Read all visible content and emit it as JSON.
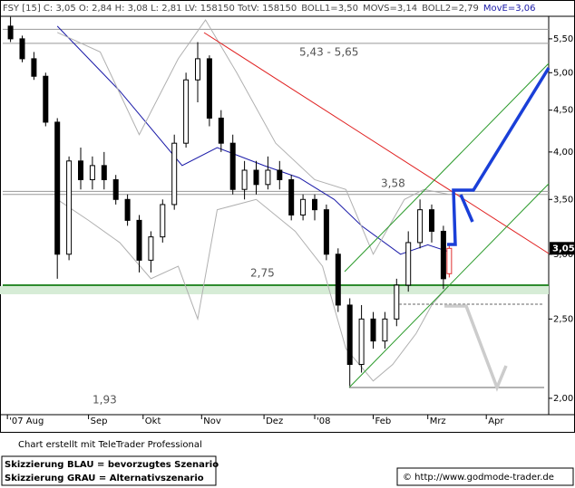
{
  "chart_data": {
    "type": "candlestick",
    "header": [
      "FSY [15] C: 3,05 O: 2,84 H: 3,08 L: 2,81 LV: 158150 TotV: 158150",
      "BOLL1=3,50",
      "MOVS=3,14",
      "BOLL2=2,79",
      "MovE=3,06"
    ],
    "log_scale": true,
    "ylim": [
      1.91,
      5.86
    ],
    "yticks": [
      {
        "value": 2.0,
        "label": "2,00"
      },
      {
        "value": 2.5,
        "label": "2,50"
      },
      {
        "value": 3.0,
        "label": "3,00"
      },
      {
        "value": 3.5,
        "label": "3,50"
      },
      {
        "value": 4.0,
        "label": "4,00"
      },
      {
        "value": 4.5,
        "label": "4,50"
      },
      {
        "value": 5.0,
        "label": "5,00"
      },
      {
        "value": 5.5,
        "label": "5,50"
      }
    ],
    "xlim": [
      0,
      140
    ],
    "xticks": [
      {
        "value": 1.2,
        "label": "'07 Aug"
      },
      {
        "value": 22,
        "label": "Sep"
      },
      {
        "value": 36,
        "label": "Okt"
      },
      {
        "value": 51,
        "label": "Nov"
      },
      {
        "value": 67,
        "label": "Dez"
      },
      {
        "value": 80,
        "label": "'08"
      },
      {
        "value": 95,
        "label": "Feb"
      },
      {
        "value": 109,
        "label": "Mrz"
      },
      {
        "value": 124,
        "label": "Apr"
      }
    ],
    "last_price": {
      "value": 3.05,
      "label": "3,05"
    },
    "candles": {
      "color": "#000000",
      "last_color": "#e03030",
      "x": [
        2,
        5,
        8,
        11,
        14,
        17,
        20,
        23,
        26,
        29,
        32,
        35,
        38,
        41,
        44,
        47,
        50,
        53,
        56,
        59,
        62,
        65,
        68,
        71,
        74,
        77,
        80,
        83,
        86,
        89,
        92,
        95,
        98,
        101,
        104,
        107,
        110,
        113,
        114.5
      ],
      "open": [
        5.7,
        5.5,
        5.2,
        4.95,
        4.35,
        3.0,
        3.9,
        3.7,
        3.85,
        3.7,
        3.5,
        3.3,
        2.95,
        3.15,
        3.45,
        4.1,
        4.9,
        5.2,
        4.4,
        4.1,
        3.6,
        3.8,
        3.65,
        3.8,
        3.7,
        3.35,
        3.5,
        3.4,
        3.0,
        2.6,
        2.2,
        2.5,
        2.35,
        2.5,
        2.75,
        3.1,
        3.4,
        3.2,
        2.84
      ],
      "high": [
        5.85,
        5.55,
        5.3,
        5.0,
        4.4,
        3.95,
        4.05,
        3.95,
        4.0,
        3.75,
        3.55,
        3.35,
        3.2,
        3.5,
        4.2,
        5.0,
        5.45,
        5.25,
        4.5,
        4.2,
        3.9,
        3.9,
        3.95,
        3.9,
        3.75,
        3.55,
        3.55,
        3.45,
        3.05,
        2.65,
        2.6,
        2.55,
        2.55,
        2.8,
        3.2,
        3.5,
        3.45,
        3.25,
        3.08
      ],
      "low": [
        5.45,
        5.15,
        4.9,
        4.3,
        2.8,
        2.95,
        3.6,
        3.6,
        3.6,
        3.45,
        3.25,
        2.85,
        2.85,
        3.1,
        3.4,
        4.05,
        4.6,
        4.3,
        4.0,
        3.55,
        3.5,
        3.55,
        3.6,
        3.6,
        3.3,
        3.3,
        3.3,
        2.95,
        2.55,
        2.07,
        2.15,
        2.3,
        2.3,
        2.45,
        2.7,
        3.05,
        3.1,
        2.72,
        2.81
      ],
      "close": [
        5.5,
        5.2,
        4.95,
        4.35,
        3.0,
        3.9,
        3.7,
        3.85,
        3.7,
        3.5,
        3.3,
        2.95,
        3.15,
        3.45,
        4.1,
        4.9,
        5.2,
        4.4,
        4.1,
        3.6,
        3.8,
        3.65,
        3.8,
        3.7,
        3.35,
        3.5,
        3.4,
        3.0,
        2.6,
        2.2,
        2.5,
        2.35,
        2.5,
        2.75,
        3.1,
        3.4,
        3.2,
        2.8,
        3.05
      ]
    },
    "series": [
      {
        "name": "MovE",
        "color": "#1a1aa8",
        "x": [
          14,
          30,
          46,
          55,
          67,
          76,
          85,
          92,
          102,
          109,
          114.5
        ],
        "values": [
          5.7,
          4.75,
          3.85,
          4.05,
          3.85,
          3.72,
          3.5,
          3.25,
          3.0,
          3.08,
          3.02
        ]
      },
      {
        "name": "BOLL1",
        "color": "#b0b0b0",
        "x": [
          14,
          25,
          35,
          45,
          52,
          60,
          70,
          80,
          88,
          95,
          103,
          108,
          114.5
        ],
        "values": [
          5.6,
          5.3,
          4.2,
          5.2,
          5.8,
          5.0,
          4.1,
          3.7,
          3.6,
          3.0,
          3.5,
          3.6,
          3.55
        ]
      },
      {
        "name": "BOLL2",
        "color": "#b0b0b0",
        "x": [
          14,
          22,
          30,
          38,
          45,
          50,
          55,
          65,
          75,
          82,
          88,
          95,
          100,
          106,
          110,
          114.5
        ],
        "values": [
          3.5,
          3.3,
          3.1,
          2.8,
          2.9,
          2.5,
          3.4,
          3.5,
          3.2,
          2.9,
          2.3,
          2.1,
          2.2,
          2.4,
          2.6,
          2.75
        ]
      }
    ],
    "levels": [
      {
        "value": 5.65,
        "color": "#999999"
      },
      {
        "value": 5.43,
        "color": "#999999"
      },
      {
        "value": 3.58,
        "color": "#999999"
      },
      {
        "value": 3.55,
        "color": "#999999"
      },
      {
        "value": 2.75,
        "color": "#2e8b2e"
      }
    ],
    "annotations": [
      "5,43 - 5,65",
      "3,58",
      "2,75",
      "1,93"
    ],
    "footer": {
      "credit": "Chart erstellt mit TeleTrader Professional",
      "legend": [
        "Skizzierung BLAU = bevorzugtes Szenario",
        "Skizzierung GRAU = Alternativszenario"
      ],
      "url": "© http://www.godmode-trader.de"
    }
  }
}
